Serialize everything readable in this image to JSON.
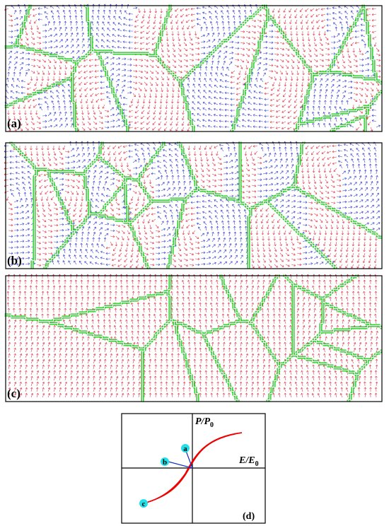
{
  "panels": [
    {
      "label": "(a)"
    },
    {
      "label": "(b)"
    },
    {
      "label": "(c)"
    }
  ],
  "plot": {
    "label": "(d)",
    "y_axis": {
      "main": "P/P",
      "sub": "0"
    },
    "x_axis": {
      "main": "E/E",
      "sub": "0"
    },
    "points": [
      {
        "label": "a"
      },
      {
        "label": "b"
      },
      {
        "label": "c"
      }
    ]
  }
}
